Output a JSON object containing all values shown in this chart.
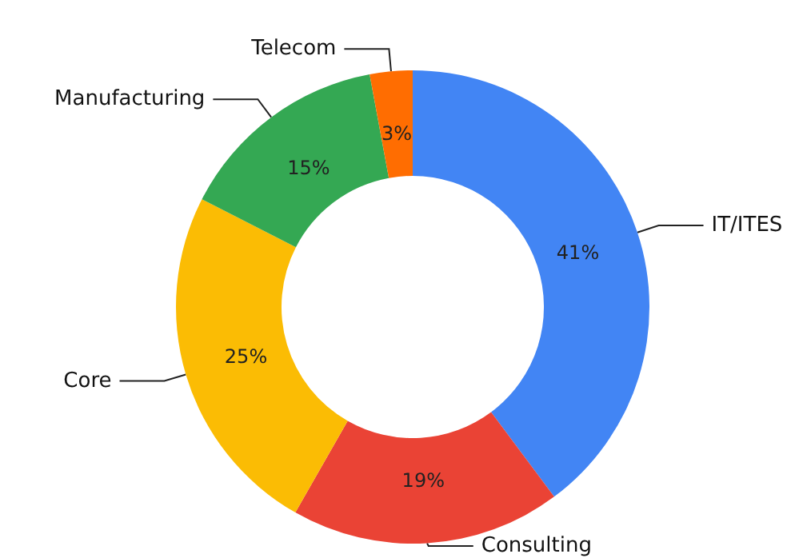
{
  "chart_data": {
    "type": "donut",
    "categories": [
      "IT/ITES",
      "Consulting",
      "Core",
      "Manufacturing",
      "Telecom"
    ],
    "values": [
      41,
      19,
      25,
      15,
      3
    ],
    "value_labels": [
      "41%",
      "19%",
      "25%",
      "15%",
      "3%"
    ],
    "colors": [
      "#4285f4",
      "#ea4335",
      "#fbbc04",
      "#34a853",
      "#ff6d01"
    ],
    "legend": false
  }
}
